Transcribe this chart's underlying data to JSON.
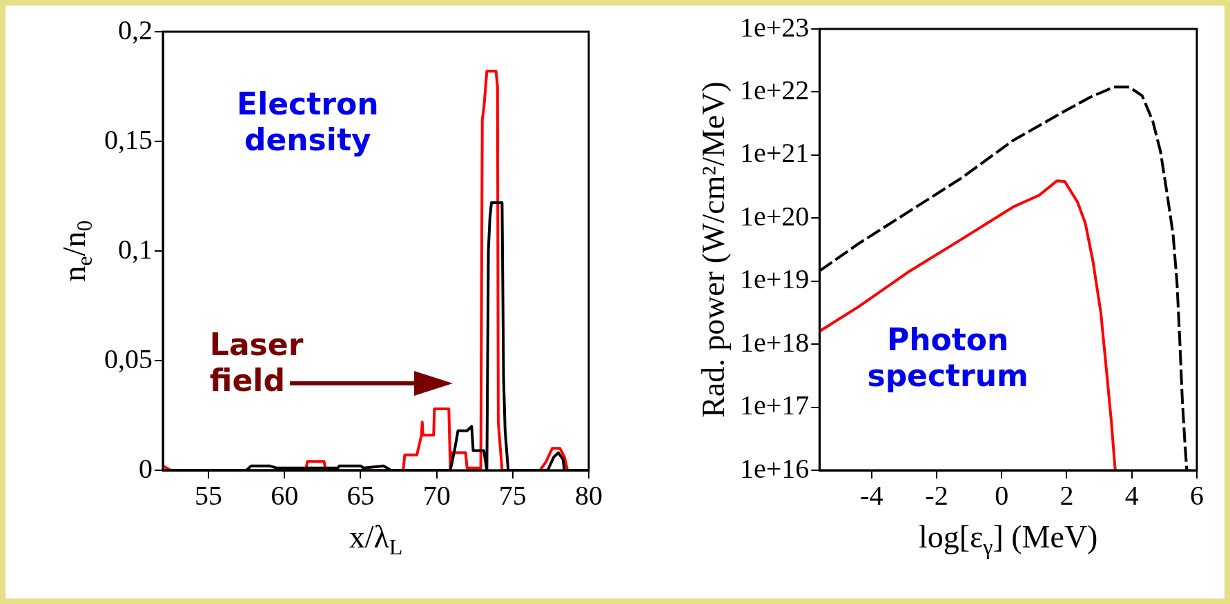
{
  "chart_data": [
    {
      "type": "line",
      "xlabel": "x/λ$_{L}$",
      "ylabel": "n$_{e}$/n$_{0}$",
      "xlim": [
        52,
        80
      ],
      "xticks": [
        55,
        60,
        65,
        70,
        75,
        80
      ],
      "ylim": [
        0,
        0.2
      ],
      "yticks": [
        {
          "value": 0,
          "label": "0"
        },
        {
          "value": 0.05,
          "label": "0,05"
        },
        {
          "value": 0.1,
          "label": "0,1"
        },
        {
          "value": 0.15,
          "label": "0,15"
        },
        {
          "value": 0.2,
          "label": "0,2"
        }
      ],
      "annotations": [
        "Electron density",
        "Laser field"
      ],
      "series": [
        {
          "color": "#000000",
          "x": [
            52,
            57.5,
            57.8,
            59,
            59.5,
            63.5,
            63.6,
            65,
            65.2,
            66.5,
            67,
            70.9,
            71.2,
            71.4,
            72.0,
            72.3,
            72.4,
            73.1,
            73.3,
            73.4,
            73.5,
            73.6,
            74.3,
            74.4,
            74.5,
            74.7,
            77.3,
            77.7,
            78.0,
            78.3,
            78.4,
            80
          ],
          "values": [
            0,
            0,
            0.002,
            0.002,
            0.001,
            0.001,
            0.002,
            0.002,
            0.001,
            0.002,
            0,
            0,
            0.01,
            0.018,
            0.018,
            0.02,
            0.009,
            0.009,
            0,
            0.1,
            0.115,
            0.122,
            0.122,
            0.042,
            0.018,
            0,
            0,
            0.006,
            0.008,
            0.005,
            0,
            0
          ]
        },
        {
          "color": "#ff0000",
          "x": [
            52,
            52.5,
            61.4,
            61.5,
            62.6,
            62.7,
            67.8,
            67.9,
            68.7,
            68.8,
            69.0,
            69.05,
            69.1,
            69.8,
            69.85,
            70.8,
            70.9,
            71.0,
            71.9,
            72.0,
            72.9,
            73.0,
            73.1,
            73.3,
            73.9,
            74.0,
            74.05,
            74.3,
            76.8,
            77.2,
            77.6,
            78.1,
            78.4,
            78.6,
            80
          ],
          "values": [
            0.002,
            0,
            0,
            0.004,
            0.004,
            0,
            0,
            0.007,
            0.007,
            0.01,
            0.016,
            0.022,
            0.016,
            0.016,
            0.028,
            0.028,
            0,
            0.008,
            0.008,
            0.001,
            0.001,
            0.16,
            0.165,
            0.182,
            0.182,
            0.175,
            0.022,
            0,
            0,
            0.004,
            0.01,
            0.01,
            0.006,
            0,
            0
          ]
        }
      ]
    },
    {
      "type": "line",
      "xlabel": "log[ε$_{γ}$] (MeV)",
      "ylabel": "Rad. power (W/cm²/MeV)",
      "log": "y",
      "xlim": [
        -5.6,
        6
      ],
      "xticks": [
        -4,
        -2,
        0,
        2,
        4,
        6
      ],
      "ylim": [
        1e+16,
        1e+23
      ],
      "yticks": [
        {
          "value": 1e+16,
          "label": "1e+16"
        },
        {
          "value": 1e+17,
          "label": "1e+17"
        },
        {
          "value": 1e+18,
          "label": "1e+18"
        },
        {
          "value": 1e+19,
          "label": "1e+19"
        },
        {
          "value": 1e+20,
          "label": "1e+20"
        },
        {
          "value": 1e+21,
          "label": "1e+21"
        },
        {
          "value": 1e+22,
          "label": "1e+22"
        },
        {
          "value": 1e+23,
          "label": "1e+23"
        }
      ],
      "annotations": [
        "Photon spectrum"
      ],
      "series": [
        {
          "color": "#000000",
          "line_style": "dashed",
          "x": [
            -5.6,
            -4.41,
            -2.82,
            -1.24,
            0.35,
            1.94,
            2.73,
            3.45,
            3.92,
            4.32,
            4.64,
            4.88,
            5.11,
            5.27,
            5.39,
            5.47,
            5.55,
            5.63,
            5.69
          ],
          "values": [
            1.45e+19,
            3.9e+19,
            1.3e+20,
            4.3e+20,
            1.7e+21,
            5e+21,
            8.3e+21,
            1.2e+22,
            1.2e+22,
            8.7e+21,
            3.5e+21,
            1.15e+21,
            2e+20,
            5.4e+19,
            9.3e+18,
            1.3e+18,
            1.4e+17,
            2.8e+16,
            1e+16
          ]
        },
        {
          "color": "#ff0000",
          "x": [
            -5.6,
            -4.41,
            -2.82,
            -1.24,
            0.35,
            1.15,
            1.7,
            1.94,
            2.33,
            2.57,
            2.81,
            3.05,
            3.21,
            3.37,
            3.49
          ],
          "values": [
            1.6e+18,
            3.9e+18,
            1.45e+19,
            4.6e+19,
            1.5e+20,
            2.3e+20,
            3.9e+20,
            3.8e+20,
            1.8e+20,
            8.3e+19,
            2e+19,
            3.1e+18,
            4.4e+17,
            6e+16,
            1e+16
          ]
        }
      ]
    }
  ]
}
